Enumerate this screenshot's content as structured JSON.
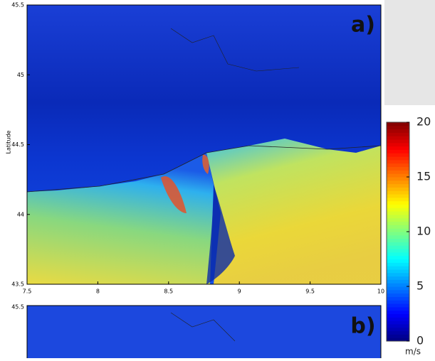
{
  "panels": [
    {
      "label": "a)",
      "y_label": "Latitude",
      "xlim": [
        7.5,
        10
      ],
      "xticks": [
        7.5,
        8,
        8.5,
        9,
        9.5,
        10
      ],
      "ylim": [
        43.5,
        45.5
      ],
      "yticks": [
        43.5,
        44,
        44.5,
        45,
        45.5
      ]
    },
    {
      "label": "b)",
      "yticks": [
        45.5
      ]
    }
  ],
  "colorbar": {
    "lim": [
      0,
      20
    ],
    "ticks": [
      0,
      5,
      10,
      15,
      20
    ],
    "unit": "m/s"
  }
}
